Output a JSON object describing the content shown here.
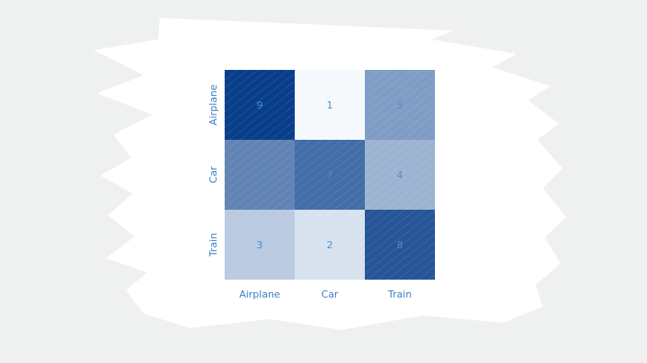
{
  "chart_data": {
    "type": "heatmap",
    "title": "",
    "xlabel": "",
    "ylabel": "",
    "x_categories": [
      "Airplane",
      "Car",
      "Train"
    ],
    "y_categories": [
      "Airplane",
      "Car",
      "Train"
    ],
    "values": [
      [
        9,
        1,
        5
      ],
      [
        6,
        7,
        4
      ],
      [
        3,
        2,
        8
      ]
    ],
    "value_range": [
      1,
      9
    ],
    "colormap": "Blues",
    "colormap_light": "#f5f9fd",
    "colormap_dark": "#083e8a",
    "label_color": "#4a8fd0",
    "grid": false,
    "legend": "none"
  }
}
